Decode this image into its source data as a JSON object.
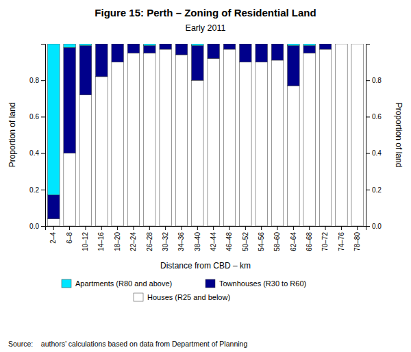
{
  "chart_data": {
    "type": "bar",
    "stacked": true,
    "title": "Figure 15: Perth – Zoning of Residential Land",
    "subtitle": "Early 2011",
    "xlabel": "Distance from CBD – km",
    "ylabel": "Proportion of land",
    "categories": [
      "2–4",
      "6–8",
      "10–12",
      "14–16",
      "18–20",
      "22–24",
      "26–28",
      "30–32",
      "34–36",
      "38–40",
      "42–44",
      "46–48",
      "50–52",
      "54–56",
      "58–60",
      "62–64",
      "66–68",
      "70–72",
      "74–76",
      "78–80"
    ],
    "series": [
      {
        "name": "Houses (R25 and below)",
        "color": "#FFFFFF",
        "values": [
          0.04,
          0.4,
          0.72,
          0.82,
          0.9,
          0.95,
          0.95,
          0.97,
          0.94,
          0.8,
          0.92,
          0.97,
          0.9,
          0.9,
          0.91,
          0.77,
          0.95,
          0.97,
          1.0,
          1.0
        ]
      },
      {
        "name": "Townhouses (R30 to R60)",
        "color": "#00008B",
        "values": [
          0.13,
          0.58,
          0.27,
          0.18,
          0.1,
          0.05,
          0.04,
          0.03,
          0.06,
          0.19,
          0.08,
          0.03,
          0.1,
          0.1,
          0.09,
          0.22,
          0.04,
          0.03,
          0.0,
          0.0
        ]
      },
      {
        "name": "Apartments (R80 and above)",
        "color": "#00E5FF",
        "values": [
          0.83,
          0.02,
          0.01,
          0.0,
          0.0,
          0.0,
          0.01,
          0.0,
          0.0,
          0.01,
          0.0,
          0.0,
          0.0,
          0.0,
          0.0,
          0.01,
          0.01,
          0.0,
          0.0,
          0.0
        ]
      }
    ],
    "ylim": [
      0,
      1.0
    ],
    "yticks": [
      {
        "value": 0.0,
        "label": "0.0"
      },
      0.2,
      0.4,
      0.6,
      0.8
    ],
    "y2lim": [
      0,
      1.0
    ],
    "y2ticks": [
      {
        "value": 0.0,
        "label": "0.0"
      },
      0.2,
      0.4,
      0.6,
      0.8
    ],
    "grid": false,
    "legend": "bottom",
    "source": "Source:    authors’ calculations based on data from Department of Planning"
  }
}
